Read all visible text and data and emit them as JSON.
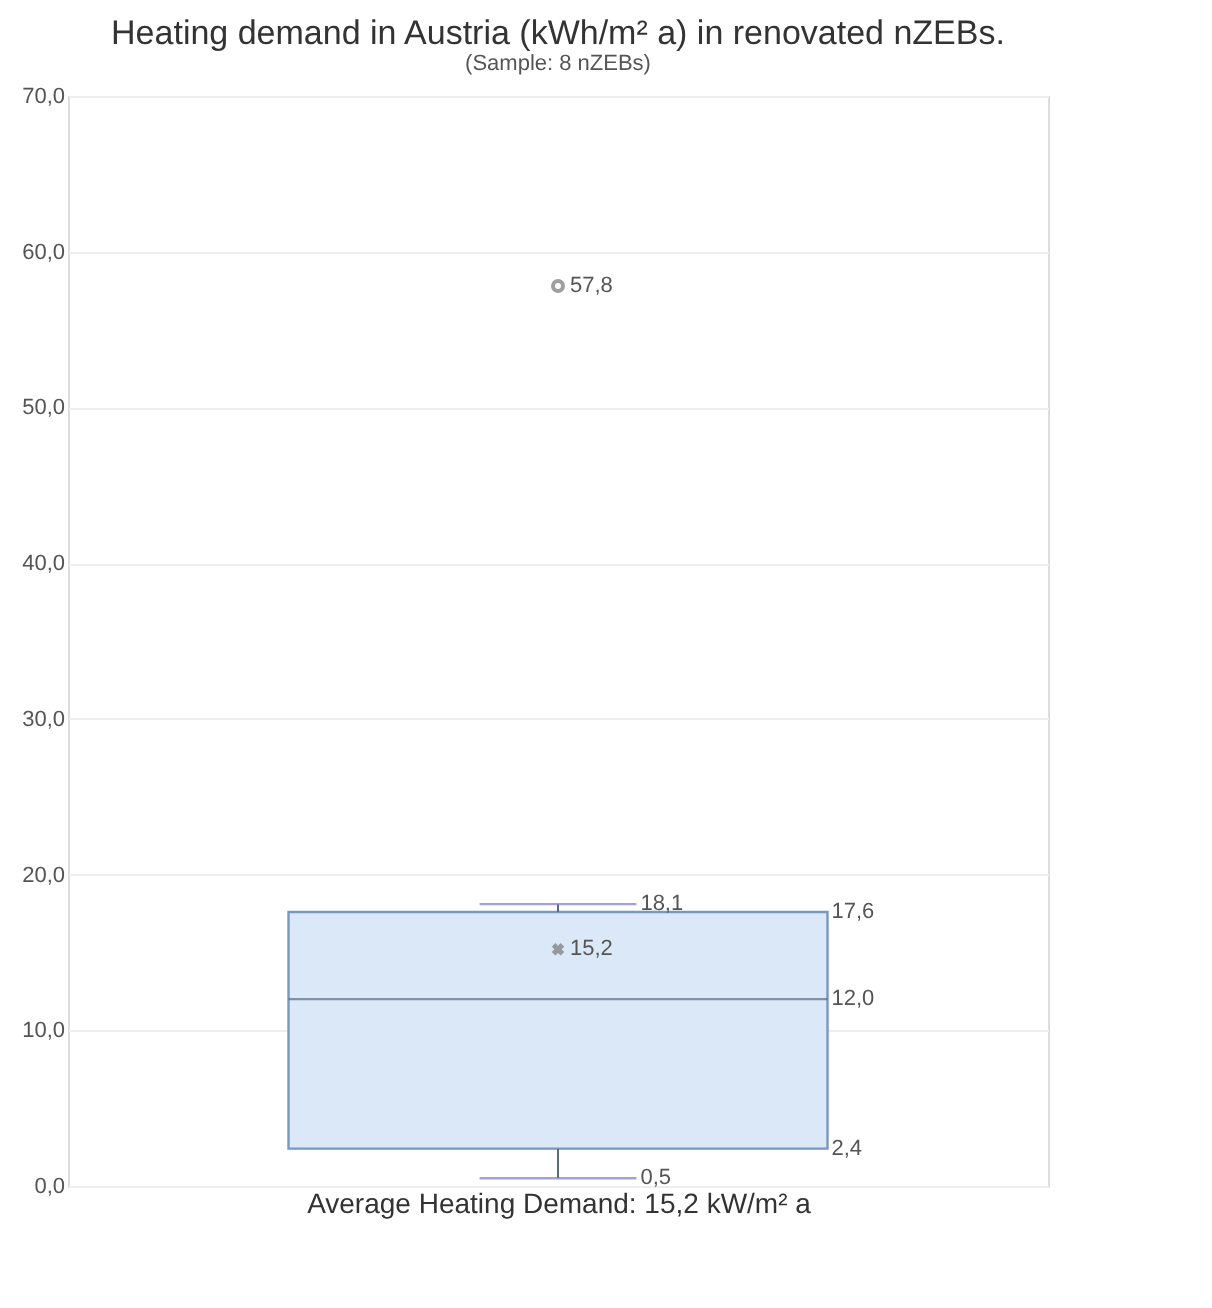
{
  "chart_data": {
    "type": "box",
    "title": "Heating demand in Austria (kWh/m² a) in renovated nZEBs.",
    "subtitle": "(Sample: 8 nZEBs)",
    "xlabel": "Average Heating Demand: 15,2 kW/m² a",
    "categories": [
      null
    ],
    "boxes": [
      {
        "low": 0.5,
        "q1": 2.4,
        "median": 12.0,
        "q3": 17.6,
        "high": 18.1,
        "mean": 15.2,
        "outliers": [
          57.8
        ]
      }
    ],
    "color": "#dae8f8",
    "ylim": [
      0,
      70
    ],
    "yticks": [
      {
        "value": 0,
        "label": "0,0"
      },
      {
        "value": 10,
        "label": "10,0"
      },
      {
        "value": 20,
        "label": "20,0"
      },
      {
        "value": 30,
        "label": "30,0"
      },
      {
        "value": 40,
        "label": "40,0"
      },
      {
        "value": 50,
        "label": "50,0"
      },
      {
        "value": 60,
        "label": "60,0"
      },
      {
        "value": 70,
        "label": "70,0"
      }
    ],
    "grid": "y",
    "tick_labels": "y",
    "annotations": [
      "18,1",
      "17,6",
      "12,0",
      "2,4",
      "0,5",
      "15,2",
      "57,8"
    ]
  }
}
